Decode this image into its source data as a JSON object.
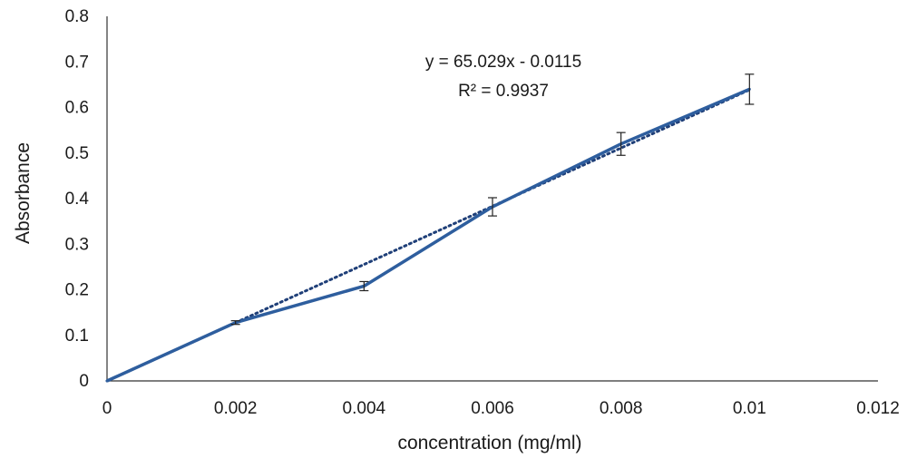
{
  "chart_data": {
    "type": "line",
    "xlabel": "concentration (mg/ml)",
    "ylabel": "Absorbance",
    "xlim": [
      0,
      0.012
    ],
    "ylim": [
      0,
      0.8
    ],
    "x_ticks": [
      "0",
      "0.002",
      "0.004",
      "0.006",
      "0.008",
      "0.01",
      "0.012"
    ],
    "y_ticks": [
      "0",
      "0.1",
      "0.2",
      "0.3",
      "0.4",
      "0.5",
      "0.6",
      "0.7",
      "0.8"
    ],
    "grid": false,
    "legend": "none",
    "series": [
      {
        "x": [
          0,
          0.002,
          0.004,
          0.006,
          0.008,
          0.01
        ],
        "y": [
          0,
          0.128,
          0.208,
          0.382,
          0.52,
          0.64
        ],
        "error": [
          0,
          0.004,
          0.01,
          0.02,
          0.025,
          0.033
        ],
        "color": "#2e5e9e"
      }
    ],
    "trendline": {
      "style": "dotted",
      "slope": 65.029,
      "intercept": -0.0115,
      "color": "#1f3f78",
      "equation": "y = 65.029x - 0.0115",
      "r_squared": "R² = 0.9937"
    }
  }
}
